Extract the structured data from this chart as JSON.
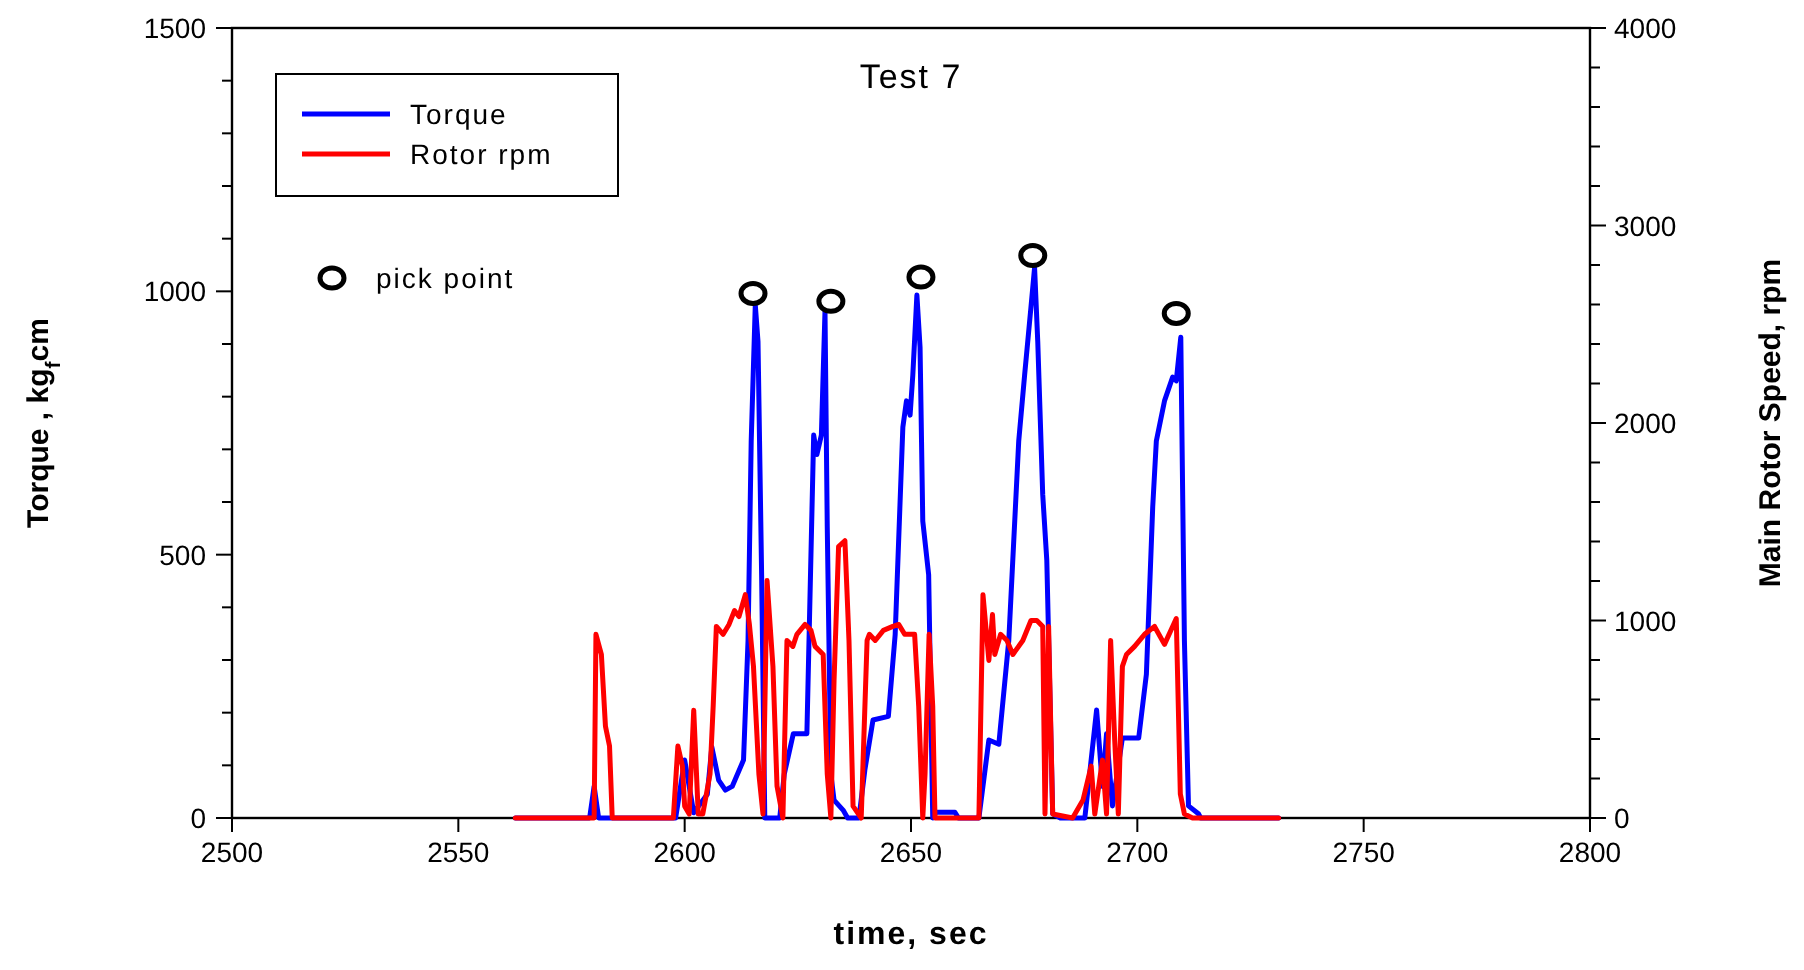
{
  "chart_data": {
    "type": "line",
    "title": "Test 7",
    "xlabel": "time, sec",
    "ylabel": "Torque , kg$_{f}$cm",
    "y2label": "Main Rotor Speed,  rpm",
    "xlim": [
      2500,
      2800
    ],
    "xticks": [
      2500,
      2550,
      2600,
      2650,
      2700,
      2750,
      2800
    ],
    "ylim": [
      0,
      1500
    ],
    "yticks": [
      0,
      {
        "value": 100,
        "label": null
      },
      {
        "value": 200,
        "label": null
      },
      {
        "value": 300,
        "label": null
      },
      {
        "value": 400,
        "label": null
      },
      500,
      {
        "value": 600,
        "label": null
      },
      {
        "value": 700,
        "label": null
      },
      {
        "value": 800,
        "label": null
      },
      {
        "value": 900,
        "label": null
      },
      1000,
      {
        "value": 1100,
        "label": null
      },
      {
        "value": 1200,
        "label": null
      },
      {
        "value": 1300,
        "label": null
      },
      {
        "value": 1400,
        "label": null
      },
      1500
    ],
    "y2lim": [
      0,
      4000
    ],
    "y2ticks": [
      0,
      {
        "value": 200,
        "label": null
      },
      {
        "value": 400,
        "label": null
      },
      {
        "value": 600,
        "label": null
      },
      {
        "value": 800,
        "label": null
      },
      1000,
      {
        "value": 1200,
        "label": null
      },
      {
        "value": 1400,
        "label": null
      },
      {
        "value": 1600,
        "label": null
      },
      {
        "value": 1800,
        "label": null
      },
      2000,
      {
        "value": 2200,
        "label": null
      },
      {
        "value": 2400,
        "label": null
      },
      {
        "value": 2600,
        "label": null
      },
      {
        "value": 2800,
        "label": null
      },
      3000,
      {
        "value": 3200,
        "label": null
      },
      {
        "value": 3400,
        "label": null
      },
      {
        "value": 3600,
        "label": null
      },
      {
        "value": 3800,
        "label": null
      },
      4000
    ],
    "legend": "top left",
    "grid": false,
    "series": [
      {
        "name": "Torque",
        "color": "#0000ff",
        "x": [
          2562.6,
          2579,
          2580,
          2581,
          2598,
          2600,
          2602,
          2605,
          2606,
          2607.5,
          2609,
          2610.5,
          2613,
          2614,
          2614.7,
          2615.6,
          2616.2,
          2617,
          2617.7,
          2621,
          2622,
          2624,
          2627,
          2628.5,
          2629.2,
          2630.2,
          2631,
          2631.5,
          2632.3,
          2633,
          2635,
          2636,
          2638.5,
          2639.8,
          2641.6,
          2645,
          2646.5,
          2648.2,
          2649,
          2649.8,
          2650.4,
          2651.3,
          2652,
          2652.6,
          2653.9,
          2654.8,
          2655.5,
          2659.7,
          2660.5,
          2665,
          2667.2,
          2669.4,
          2671.6,
          2673.8,
          2675.1,
          2676.5,
          2677.3,
          2678,
          2679.1,
          2680,
          2681.3,
          2683,
          2688.4,
          2691,
          2692.3,
          2693.2,
          2694.5,
          2696.7,
          2700.3,
          2702,
          2703.4,
          2704.2,
          2706,
          2707.8,
          2708.6,
          2709.6,
          2710.4,
          2711.3,
          2713.5,
          2714,
          2731.2
        ],
        "values": [
          0,
          0,
          60,
          0,
          0,
          110,
          10,
          45,
          135,
          72,
          53,
          60,
          110,
          337,
          716,
          974,
          905,
          462,
          0,
          0,
          83,
          160,
          160,
          727,
          690,
          727,
          962,
          553,
          83,
          34,
          15,
          0,
          0,
          91,
          186,
          193,
          348,
          742,
          792,
          765,
          841,
          993,
          894,
          564,
          462,
          0,
          11,
          11,
          0,
          0,
          148,
          140,
          337,
          716,
          841,
          970,
          1045,
          905,
          614,
          489,
          8,
          0,
          0,
          205,
          60,
          160,
          23,
          152,
          152,
          273,
          591,
          716,
          792,
          837,
          830,
          913,
          337,
          23,
          8,
          0,
          0
        ]
      },
      {
        "name": "Rotor rpm",
        "color": "#ff0000",
        "axis": "y2",
        "x": [
          2562.6,
          2580,
          2580.4,
          2581.6,
          2582.5,
          2583.4,
          2584,
          2597.5,
          2598.5,
          2599.5,
          2600,
          2601,
          2602,
          2603,
          2604,
          2605.6,
          2606.3,
          2607,
          2608.5,
          2609.8,
          2611,
          2612,
          2613.4,
          2614.3,
          2615.2,
          2616.4,
          2617.3,
          2618.2,
          2619.5,
          2620.4,
          2621.7,
          2622.6,
          2623.9,
          2624.8,
          2626.6,
          2627.9,
          2628.8,
          2630.6,
          2631.5,
          2632.3,
          2633,
          2634,
          2635.4,
          2636.3,
          2637.2,
          2639,
          2640.3,
          2640.8,
          2642.1,
          2643.9,
          2646,
          2647.3,
          2648.6,
          2650.8,
          2651.7,
          2652.6,
          2653.1,
          2654,
          2654.8,
          2655.3,
          2665,
          2665.9,
          2667.2,
          2668,
          2668.5,
          2669.8,
          2671.2,
          2672.5,
          2674.7,
          2676.5,
          2677.8,
          2679.1,
          2679.6,
          2680.4,
          2681.3,
          2685.7,
          2688,
          2689.8,
          2690.6,
          2692.3,
          2693.2,
          2694.1,
          2695,
          2695.8,
          2696.7,
          2697.6,
          2699.4,
          2701.6,
          2703.8,
          2706,
          2707.8,
          2708.6,
          2709.5,
          2710.4,
          2712.2,
          2731.2
        ],
        "values": [
          0,
          0,
          930,
          828,
          465,
          364,
          0,
          0,
          364,
          263,
          60,
          20,
          545,
          20,
          20,
          222,
          566,
          970,
          930,
          980,
          1050,
          1020,
          1131,
          980,
          768,
          222,
          20,
          1202,
          768,
          162,
          0,
          899,
          869,
          930,
          980,
          950,
          869,
          828,
          222,
          0,
          697,
          1374,
          1404,
          899,
          60,
          0,
          899,
          930,
          899,
          950,
          970,
          980,
          930,
          930,
          566,
          0,
          222,
          930,
          566,
          0,
          0,
          1131,
          798,
          1030,
          828,
          930,
          899,
          828,
          899,
          1000,
          1000,
          970,
          20,
          970,
          20,
          0,
          91,
          263,
          20,
          293,
          20,
          899,
          394,
          20,
          768,
          828,
          869,
          930,
          970,
          879,
          970,
          1010,
          121,
          20,
          0,
          0
        ]
      },
      {
        "name": "pick point",
        "type": "scatter",
        "marker": "circle",
        "color": "#000000",
        "x": [
          2615.1,
          2632.3,
          2652.2,
          2676.9,
          2708.6
        ],
        "values": [
          996,
          981,
          1027,
          1068,
          958
        ]
      }
    ]
  }
}
